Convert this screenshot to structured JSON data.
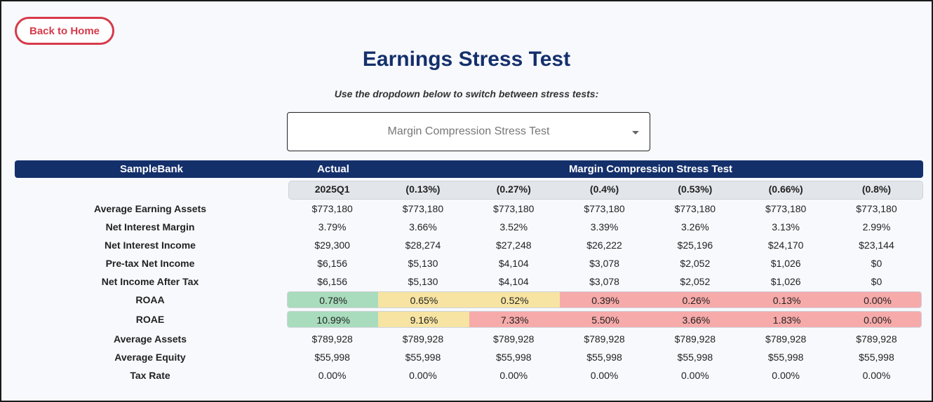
{
  "nav": {
    "back_label": "Back to Home"
  },
  "header": {
    "title": "Earnings Stress Test",
    "subtitle": "Use the dropdown below to switch between stress tests:"
  },
  "dropdown": {
    "selected": "Margin Compression Stress Test"
  },
  "table": {
    "bank_label": "SampleBank",
    "actual_label": "Actual",
    "scenario_label": "Margin Compression Stress Test",
    "columns": [
      "2025Q1",
      "(0.13%)",
      "(0.27%)",
      "(0.4%)",
      "(0.53%)",
      "(0.66%)",
      "(0.8%)"
    ],
    "rows": [
      {
        "label": "Average Earning Assets",
        "values": [
          "$773,180",
          "$773,180",
          "$773,180",
          "$773,180",
          "$773,180",
          "$773,180",
          "$773,180"
        ]
      },
      {
        "label": "Net Interest Margin",
        "values": [
          "3.79%",
          "3.66%",
          "3.52%",
          "3.39%",
          "3.26%",
          "3.13%",
          "2.99%"
        ]
      },
      {
        "label": "Net Interest Income",
        "values": [
          "$29,300",
          "$28,274",
          "$27,248",
          "$26,222",
          "$25,196",
          "$24,170",
          "$23,144"
        ]
      },
      {
        "label": "Pre-tax Net Income",
        "values": [
          "$6,156",
          "$5,130",
          "$4,104",
          "$3,078",
          "$2,052",
          "$1,026",
          "$0"
        ]
      },
      {
        "label": "Net Income After Tax",
        "values": [
          "$6,156",
          "$5,130",
          "$4,104",
          "$3,078",
          "$2,052",
          "$1,026",
          "$0"
        ]
      },
      {
        "label": "ROAA",
        "values": [
          "0.78%",
          "0.65%",
          "0.52%",
          "0.39%",
          "0.26%",
          "0.13%",
          "0.00%"
        ],
        "colors": [
          "#a8dcbd",
          "#f7e4a2",
          "#f7e4a2",
          "#f7aaaa",
          "#f7aaaa",
          "#f7aaaa",
          "#f7aaaa"
        ]
      },
      {
        "label": "ROAE",
        "values": [
          "10.99%",
          "9.16%",
          "7.33%",
          "5.50%",
          "3.66%",
          "1.83%",
          "0.00%"
        ],
        "colors": [
          "#a8dcbd",
          "#f7e4a2",
          "#f7aaaa",
          "#f7aaaa",
          "#f7aaaa",
          "#f7aaaa",
          "#f7aaaa"
        ]
      },
      {
        "label": "Average Assets",
        "values": [
          "$789,928",
          "$789,928",
          "$789,928",
          "$789,928",
          "$789,928",
          "$789,928",
          "$789,928"
        ]
      },
      {
        "label": "Average Equity",
        "values": [
          "$55,998",
          "$55,998",
          "$55,998",
          "$55,998",
          "$55,998",
          "$55,998",
          "$55,998"
        ]
      },
      {
        "label": "Tax Rate",
        "values": [
          "0.00%",
          "0.00%",
          "0.00%",
          "0.00%",
          "0.00%",
          "0.00%",
          "0.00%"
        ]
      }
    ]
  },
  "colors": {
    "brand_navy": "#14306b",
    "accent_red": "#d63a4a"
  }
}
